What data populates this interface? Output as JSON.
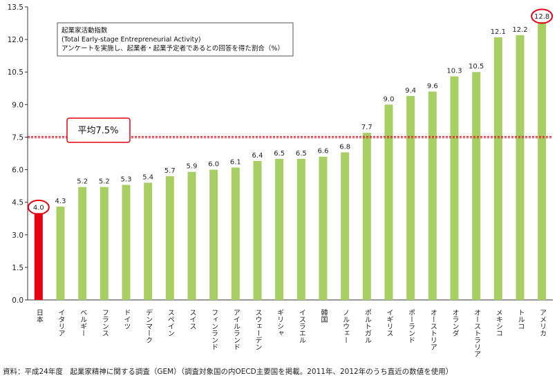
{
  "chart_data": {
    "type": "bar",
    "categories": [
      "日本",
      "イタリア",
      "ベルギー",
      "フランス",
      "ドイツ",
      "デンマーク",
      "スペイン",
      "スイス",
      "フィンランド",
      "アイルランド",
      "スウェーデン",
      "ギリシャ",
      "イスラエル",
      "韓国",
      "ノルウェー",
      "ポルトガル",
      "イギリス",
      "ポーランド",
      "オーストリア",
      "オランダ",
      "オーストラリア",
      "メキシコ",
      "トルコ",
      "アメリカ"
    ],
    "values": [
      4.0,
      4.3,
      5.2,
      5.2,
      5.3,
      5.4,
      5.7,
      5.9,
      6.0,
      6.1,
      6.4,
      6.5,
      6.5,
      6.6,
      6.8,
      7.7,
      9.0,
      9.4,
      9.6,
      10.3,
      10.5,
      12.1,
      12.2,
      12.8
    ],
    "value_labels": [
      "4.0",
      "4.3",
      "5.2",
      "5.2",
      "5.3",
      "5.4",
      "5.7",
      "5.9",
      "6.0",
      "6.1",
      "6.4",
      "6.5",
      "6.5",
      "6.6",
      "6.8",
      "7.7",
      "9.0",
      "9.4",
      "9.6",
      "10.3",
      "10.5",
      "12.1",
      "12.2",
      "12.8"
    ],
    "highlight": [
      "日本"
    ],
    "circled": [
      "日本",
      "アメリカ"
    ],
    "ylim": [
      0,
      13.5
    ],
    "yticks": [
      0,
      1.5,
      3.0,
      4.5,
      6.0,
      7.5,
      9.0,
      10.5,
      12.0,
      13.5
    ],
    "ytick_labels": [
      "0.0",
      "1.5",
      "3.0",
      "4.5",
      "6.0",
      "7.5",
      "9.0",
      "10.5",
      "12.0",
      "13.5"
    ],
    "average": {
      "value": 7.5,
      "label": "平均7.5%"
    },
    "legend": {
      "lines": [
        "起業家活動指数",
        "(Total Early-stage Entrepreneurial Activity)",
        "アンケートを実施し、起業者・起業予定者であるとの回答を得た割合（%）"
      ],
      "placement": "top-left"
    },
    "grid": false,
    "colors": {
      "bar": "#a8cf63",
      "highlight_bar": "#e60012",
      "average_line": "#e60012",
      "circle": "#e60012"
    }
  },
  "source": "資料：平成24年度　起業家精神に関する調査（GEM）（調査対象国の内OECD主要国を掲載。2011年、2012年のうち直近の数値を使用）"
}
